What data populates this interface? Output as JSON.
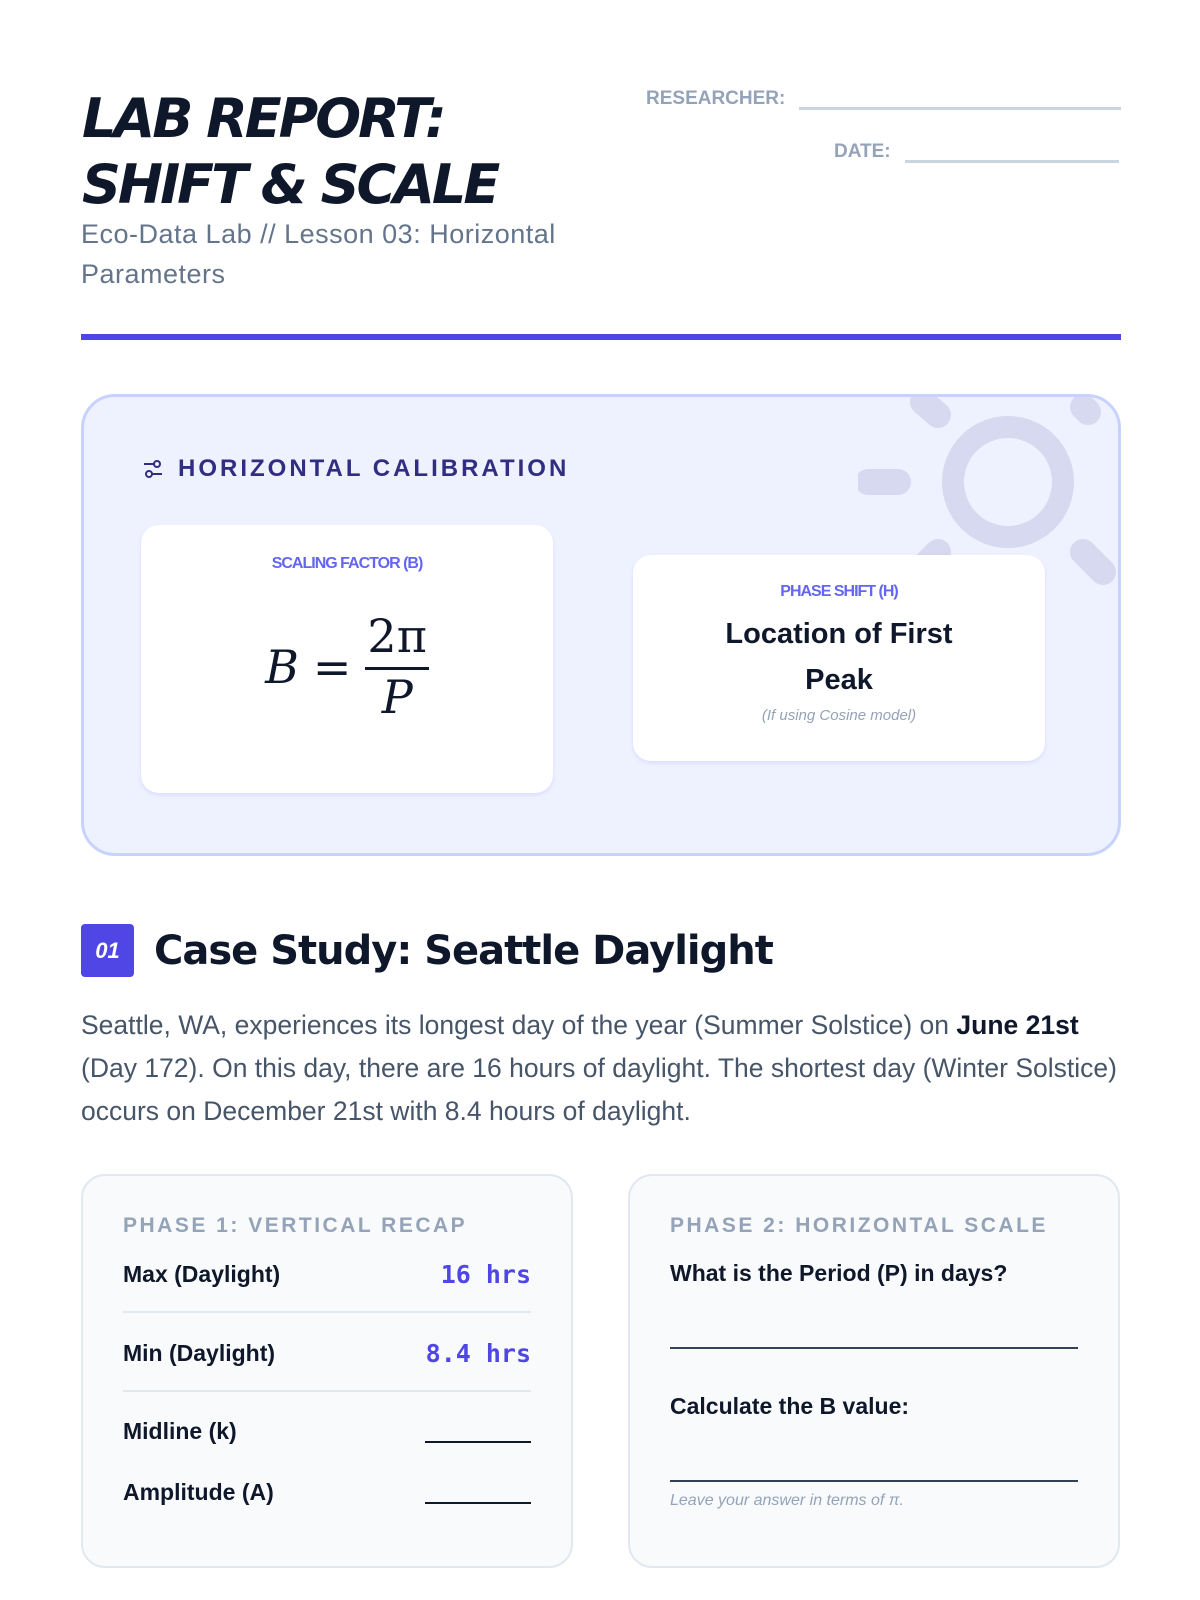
{
  "header": {
    "title_line1": "LAB REPORT:",
    "title_line2": "SHIFT & SCALE",
    "subtitle": "Eco-Data Lab // Lesson 03: Horizontal Parameters",
    "researcher_label": "RESEARCHER:",
    "date_label": "DATE:",
    "accent": "#4f46e5"
  },
  "calibration": {
    "heading": "HORIZONTAL CALIBRATION",
    "icon": "sliders-icon",
    "decor_icon": "sun-icon",
    "scaling": {
      "label": "SCALING FACTOR (B)",
      "lhs": "B",
      "eq": "=",
      "numerator": "2π",
      "denominator": "P"
    },
    "phase": {
      "label": "PHASE SHIFT (H)",
      "text": "Location of First Peak",
      "note": "(If using Cosine model)"
    }
  },
  "section": {
    "number": "01",
    "title": "Case Study: Seattle Daylight",
    "para_1": "Seattle, WA, experiences its longest day of the year (Summer Solstice) on ",
    "para_bold": "June 21st",
    "para_2": " (Day 172). On this day, there are 16 hours of daylight. The shortest day (Winter Solstice) occurs on December 21st with 8.4 hours of daylight."
  },
  "phase1": {
    "title": "PHASE 1: VERTICAL RECAP",
    "rows": [
      {
        "label": "Max (Daylight)",
        "value": "16 hrs"
      },
      {
        "label": "Min (Daylight)",
        "value": "8.4 hrs"
      },
      {
        "label": "Midline (k)"
      },
      {
        "label": "Amplitude (A)"
      }
    ]
  },
  "phase2": {
    "title": "PHASE 2: HORIZONTAL SCALE",
    "q1": "What is the Period (P) in days?",
    "q2": "Calculate the B value:",
    "hint": "Leave your answer in terms of π."
  }
}
